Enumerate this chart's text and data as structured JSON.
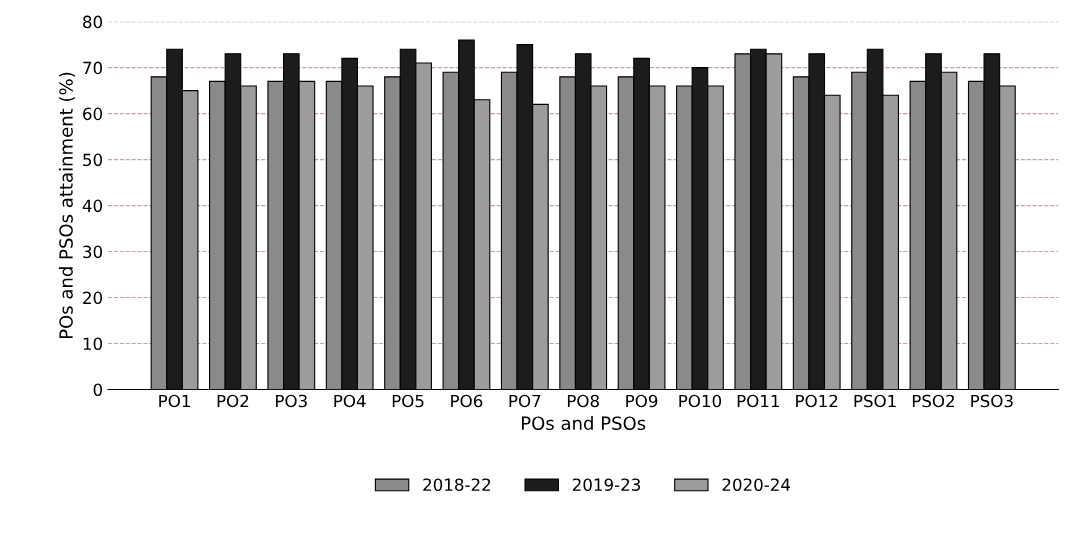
{
  "chart_data": {
    "type": "bar",
    "xlabel": "POs and PSOs",
    "ylabel": "POs and PSOs attainment (%)",
    "categories": [
      "PO1",
      "PO2",
      "PO3",
      "PO4",
      "PO5",
      "PO6",
      "PO7",
      "PO8",
      "PO9",
      "PO10",
      "PO11",
      "PO12",
      "PSO1",
      "PSO2",
      "PSO3"
    ],
    "series": [
      {
        "name": "2018-22",
        "color": "#8a8a8a",
        "values": [
          68,
          67,
          67,
          67,
          68,
          69,
          69,
          68,
          68,
          66,
          73,
          68,
          69,
          67,
          67
        ]
      },
      {
        "name": "2019-23",
        "color": "#1c1c1c",
        "values": [
          74,
          73,
          73,
          72,
          74,
          76,
          75,
          73,
          72,
          70,
          74,
          73,
          74,
          73,
          73
        ]
      },
      {
        "name": "2020-24",
        "color": "#9c9c9c",
        "values": [
          65,
          66,
          67,
          66,
          71,
          63,
          62,
          66,
          66,
          66,
          73,
          64,
          64,
          69,
          66
        ]
      }
    ],
    "ylim": [
      0,
      80
    ],
    "yticks": [
      0,
      10,
      20,
      30,
      40,
      50,
      60,
      70,
      80
    ],
    "grid": "y",
    "legend": "bottom"
  }
}
